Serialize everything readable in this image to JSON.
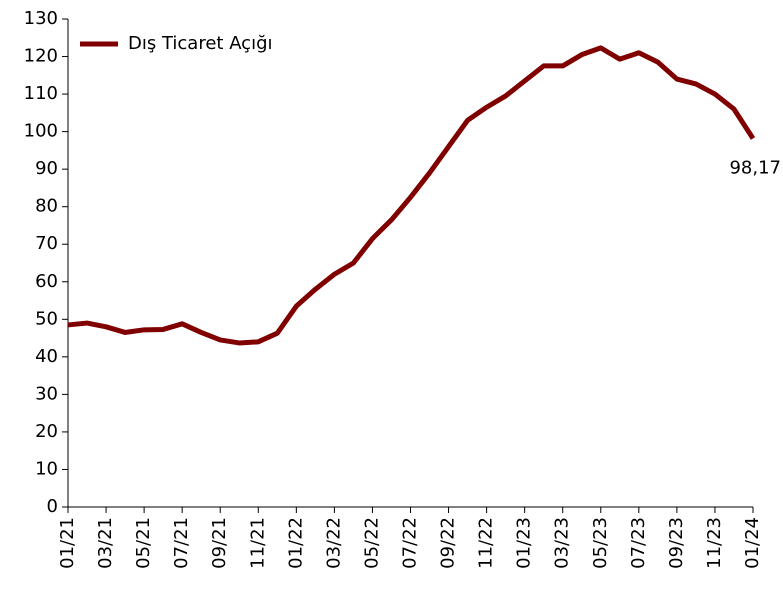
{
  "chart_data": {
    "type": "line",
    "categories": [
      "01/21",
      null,
      "03/21",
      null,
      "05/21",
      null,
      "07/21",
      null,
      "09/21",
      null,
      "11/21",
      null,
      "01/22",
      null,
      "03/22",
      null,
      "05/22",
      null,
      "07/22",
      null,
      "09/22",
      null,
      "11/22",
      null,
      "01/23",
      null,
      "03/23",
      null,
      "05/23",
      null,
      "07/23",
      null,
      "09/23",
      null,
      "11/23",
      null,
      "01/24"
    ],
    "series": [
      {
        "name": "Dış Ticaret Açığı",
        "color": "#800000",
        "values": [
          48.5,
          49,
          48,
          46.5,
          47.2,
          47.3,
          48.8,
          46.5,
          44.5,
          43.7,
          44,
          46.3,
          53.5,
          58,
          62,
          65,
          71.5,
          76.5,
          82.5,
          89,
          96,
          103,
          106.5,
          109.5,
          113.5,
          117.5,
          117.5,
          120.5,
          122.3,
          119.3,
          121,
          118.5,
          114,
          112.7,
          110,
          106,
          98.17
        ],
        "value_labels": [
          null,
          null,
          null,
          null,
          null,
          null,
          null,
          null,
          null,
          null,
          null,
          null,
          null,
          null,
          null,
          null,
          null,
          null,
          null,
          null,
          null,
          null,
          null,
          null,
          null,
          null,
          null,
          null,
          null,
          null,
          null,
          null,
          null,
          null,
          null,
          null,
          "98,17"
        ]
      }
    ],
    "ylim": [
      0,
      130
    ],
    "yticks": [
      0,
      10,
      20,
      30,
      40,
      50,
      60,
      70,
      80,
      90,
      100,
      110,
      120,
      130
    ],
    "legend": "upper left"
  }
}
